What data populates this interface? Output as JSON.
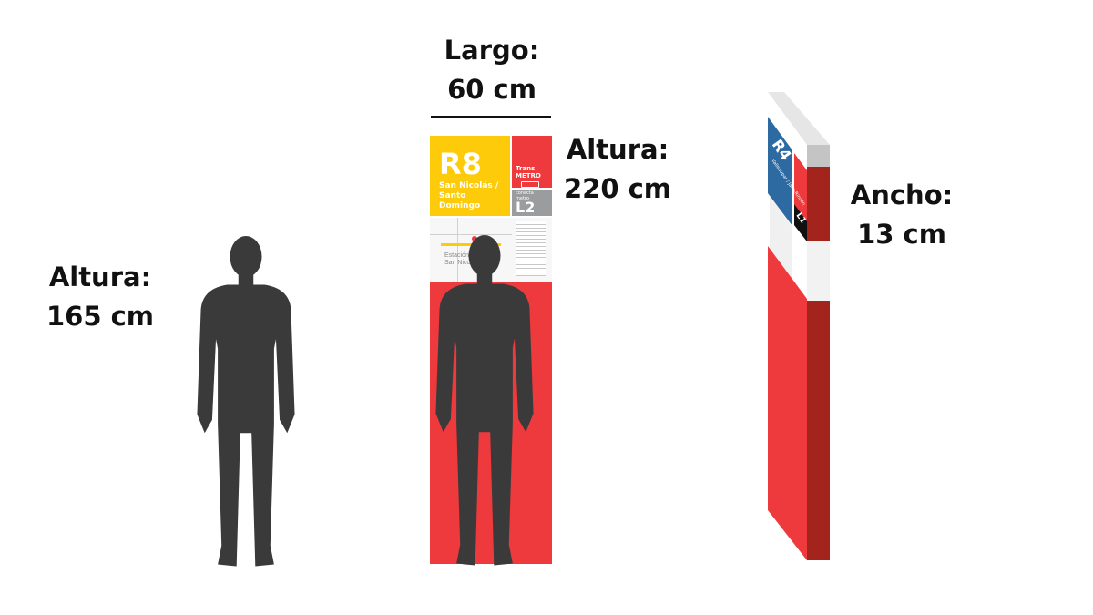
{
  "labels": {
    "person": {
      "line1": "Altura:",
      "line2": "165 cm"
    },
    "largo": {
      "line1": "Largo:",
      "line2": "60 cm"
    },
    "totem_height": {
      "line1": "Altura:",
      "line2": "220 cm"
    },
    "ancho": {
      "line1": "Ancho:",
      "line2": "13 cm"
    }
  },
  "front_totem": {
    "route_code": "R8",
    "route_line1": "San Nicolás /",
    "route_line2": "Santo",
    "route_line3": "Domingo",
    "brand_line1": "Trans",
    "brand_line2": "METRO",
    "connect_line1": "conecta",
    "connect_line2": "metro",
    "metro_line": "L2",
    "map_station_line1": "Estación",
    "map_station_line2": "San Nicolás"
  },
  "side_totem": {
    "route_code": "R4",
    "route_text": "Valledupar / Jalla-Rincón",
    "metro_line": "L1"
  },
  "colors": {
    "yellow": "#fdcb0a",
    "red": "#ee3a3c",
    "dark_red": "#a3241c",
    "blue": "#2d6aa1",
    "gray": "#9b9c9e",
    "silhouette": "#3b3a3b"
  }
}
